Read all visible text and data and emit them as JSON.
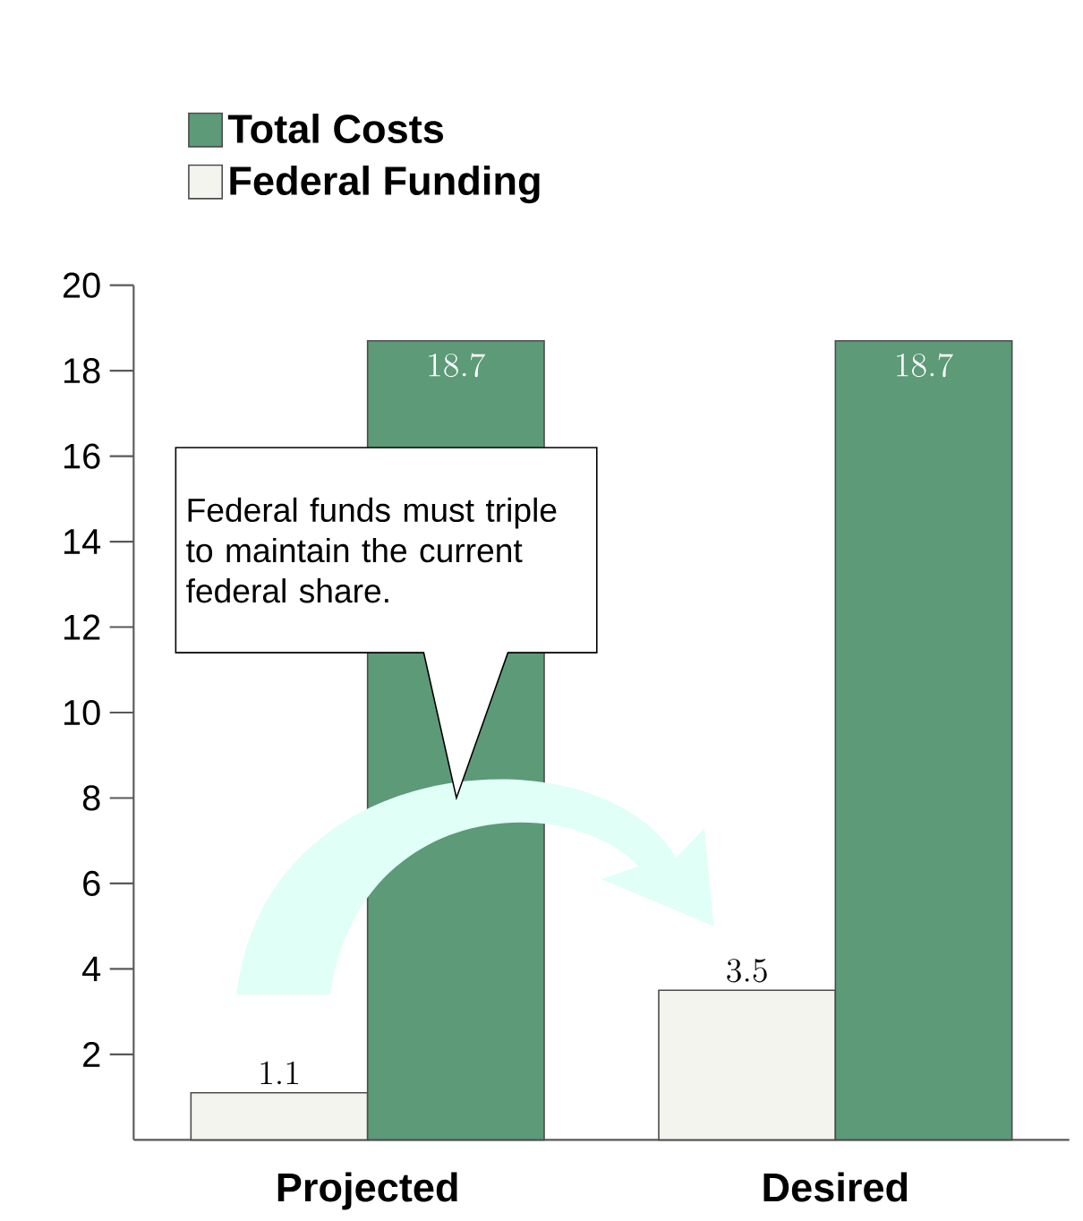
{
  "chart_data": {
    "type": "bar",
    "categories": [
      "Projected",
      "Desired"
    ],
    "series": [
      {
        "name": "Federal Funding",
        "color": "#f4f4ef",
        "values": [
          1.1,
          3.5
        ]
      },
      {
        "name": "Total Costs",
        "color": "#5c9a78",
        "values": [
          18.7,
          18.7
        ]
      }
    ],
    "ylim": [
      0,
      20
    ],
    "yticks": [
      2,
      4,
      6,
      8,
      10,
      12,
      14,
      16,
      18,
      20
    ],
    "data_labels": true,
    "legend": "top left",
    "grid": false,
    "annotations": [
      "Federal funds must triple to maintain the current federal share."
    ]
  }
}
